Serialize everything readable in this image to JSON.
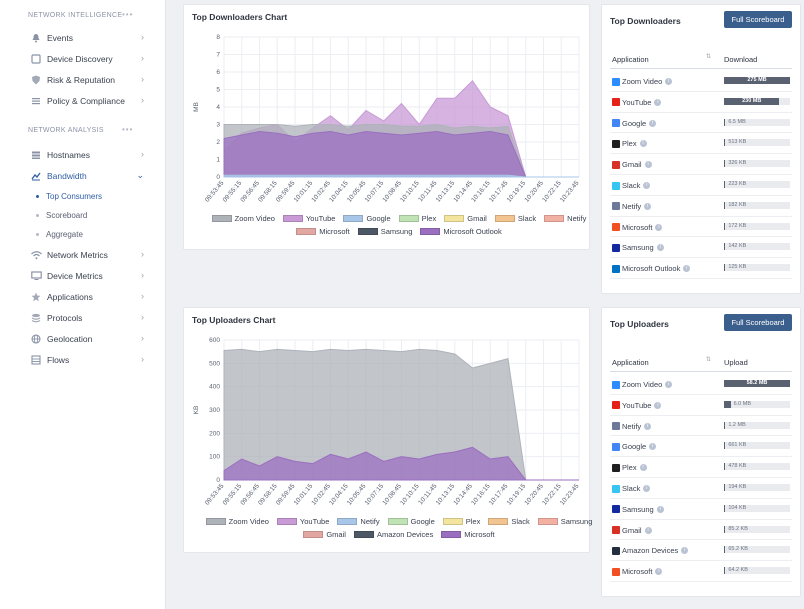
{
  "sidebar": {
    "sections": [
      {
        "title": "NETWORK INTELLIGENCE",
        "dots": "•••"
      },
      {
        "title": "NETWORK ANALYSIS",
        "dots": "•••"
      }
    ],
    "intel_items": [
      {
        "label": "Events",
        "icon": "bell-icon"
      },
      {
        "label": "Device Discovery",
        "icon": "device-icon"
      },
      {
        "label": "Risk & Reputation",
        "icon": "shield-icon"
      },
      {
        "label": "Policy & Compliance",
        "icon": "list-icon"
      }
    ],
    "analysis_items": [
      {
        "label": "Hostnames",
        "icon": "hostnames-icon"
      },
      {
        "label": "Bandwidth",
        "icon": "bandwidth-chart-icon"
      },
      {
        "label": "Network Metrics",
        "icon": "wifi-icon"
      },
      {
        "label": "Device Metrics",
        "icon": "monitor-icon"
      },
      {
        "label": "Applications",
        "icon": "star-icon"
      },
      {
        "label": "Protocols",
        "icon": "layers-icon"
      },
      {
        "label": "Geolocation",
        "icon": "globe-icon"
      },
      {
        "label": "Flows",
        "icon": "flows-icon"
      }
    ],
    "bandwidth_sub": [
      "Top Consumers",
      "Scoreboard",
      "Aggregate"
    ]
  },
  "downloaders_chart": {
    "title": "Top Downloaders Chart",
    "ylabel": "MB",
    "chart_data": {
      "type": "area",
      "x": [
        "09:53:45",
        "09:55:15",
        "09:56:45",
        "09:58:15",
        "09:59:45",
        "10:01:15",
        "10:02:45",
        "10:04:15",
        "10:05:45",
        "10:07:15",
        "10:08:45",
        "10:10:15",
        "10:11:45",
        "10:13:15",
        "10:14:45",
        "10:16:15",
        "10:17:45",
        "10:19:15",
        "10:20:45",
        "10:22:15",
        "10:23:45"
      ],
      "ylim": [
        0,
        8
      ],
      "yticks": [
        0,
        1,
        2,
        3,
        4,
        5,
        6,
        7,
        8
      ],
      "series": [
        {
          "name": "Zoom Video",
          "color": "#aeb3ba",
          "values": [
            3.0,
            3.0,
            3.0,
            3.0,
            2.9,
            3.0,
            3.0,
            2.9,
            3.0,
            3.0,
            2.9,
            2.9,
            3.0,
            2.8,
            2.9,
            2.8,
            2.9,
            0,
            0,
            0,
            0
          ]
        },
        {
          "name": "YouTube",
          "color": "#c89ad6",
          "values": [
            1.5,
            2.5,
            2.8,
            3.0,
            2.0,
            2.8,
            3.5,
            2.7,
            3.8,
            3.2,
            4.2,
            3.0,
            4.5,
            4.5,
            5.5,
            4.0,
            3.5,
            0,
            0,
            0,
            0
          ]
        },
        {
          "name": "Google",
          "color": "#a8c7e8",
          "values": [
            0.1,
            0.1,
            0.1,
            0.1,
            0.1,
            0.1,
            0.1,
            0.1,
            0.1,
            0.1,
            0.1,
            0.1,
            0.1,
            0.1,
            0.1,
            0.1,
            0.1,
            0,
            0,
            0,
            0
          ]
        },
        {
          "name": "Plex",
          "color": "#bfe3b4",
          "values": [
            0,
            0,
            0,
            0,
            0,
            0,
            0,
            0,
            0,
            0,
            0,
            0,
            0,
            0,
            0,
            0,
            0,
            0,
            0,
            0,
            0
          ]
        },
        {
          "name": "Gmail",
          "color": "#f3e59e",
          "values": [
            0,
            0,
            0,
            0,
            0,
            0,
            0,
            0,
            0,
            0,
            0,
            0,
            0,
            0,
            0,
            0,
            0,
            0,
            0,
            0,
            0
          ]
        },
        {
          "name": "Slack",
          "color": "#f2c48f",
          "values": [
            0,
            0,
            0,
            0,
            0,
            0,
            0,
            0,
            0,
            0,
            0,
            0,
            0,
            0,
            0,
            0,
            0,
            0,
            0,
            0,
            0
          ]
        },
        {
          "name": "Netify",
          "color": "#f2b1a3",
          "values": [
            0,
            0,
            0,
            0,
            0,
            0,
            0,
            0,
            0,
            0,
            0,
            0,
            0,
            0,
            0,
            0,
            0,
            0,
            0,
            0,
            0
          ]
        },
        {
          "name": "Microsoft",
          "color": "#e3a7a3",
          "values": [
            0,
            0,
            0,
            0,
            0,
            0,
            0,
            0,
            0,
            0,
            0,
            0,
            0,
            0,
            0,
            0,
            0,
            0,
            0,
            0,
            0
          ]
        },
        {
          "name": "Samsung",
          "color": "#4d5866",
          "values": [
            0,
            0,
            0,
            0,
            0,
            0,
            0,
            0,
            0,
            0,
            0,
            0,
            0,
            0,
            0,
            0,
            0,
            0,
            0,
            0,
            0
          ]
        },
        {
          "name": "Microsoft Outlook",
          "color": "#9b6fc0",
          "values": [
            2.2,
            2.4,
            2.6,
            2.5,
            2.3,
            2.5,
            2.6,
            2.4,
            2.6,
            2.5,
            2.4,
            2.5,
            2.6,
            2.4,
            2.5,
            2.6,
            2.4,
            0,
            0,
            0,
            0
          ]
        }
      ]
    }
  },
  "uploaders_chart": {
    "title": "Top Uploaders Chart",
    "ylabel": "KB",
    "chart_data": {
      "type": "area",
      "x": [
        "09:53:45",
        "09:55:15",
        "09:56:45",
        "09:58:15",
        "09:59:45",
        "10:01:15",
        "10:02:45",
        "10:04:15",
        "10:05:45",
        "10:07:15",
        "10:08:45",
        "10:10:15",
        "10:11:45",
        "10:13:15",
        "10:14:45",
        "10:16:15",
        "10:17:45",
        "10:19:15",
        "10:20:45",
        "10:22:15",
        "10:23:45"
      ],
      "ylim": [
        0,
        600
      ],
      "yticks": [
        0,
        100,
        200,
        300,
        400,
        500,
        600
      ],
      "series": [
        {
          "name": "Zoom Video",
          "color": "#aeb3ba",
          "values": [
            555,
            560,
            550,
            560,
            555,
            550,
            560,
            555,
            560,
            555,
            550,
            560,
            555,
            540,
            480,
            500,
            520,
            0,
            0,
            0,
            0
          ]
        },
        {
          "name": "YouTube",
          "color": "#c89ad6",
          "values": [
            0,
            0,
            0,
            0,
            0,
            0,
            0,
            0,
            0,
            0,
            0,
            0,
            0,
            0,
            0,
            0,
            0,
            0,
            0,
            0,
            0
          ]
        },
        {
          "name": "Netify",
          "color": "#a8c7e8",
          "values": [
            0,
            0,
            0,
            0,
            0,
            0,
            0,
            0,
            0,
            0,
            0,
            0,
            0,
            0,
            0,
            0,
            0,
            0,
            0,
            0,
            0
          ]
        },
        {
          "name": "Google",
          "color": "#bfe3b4",
          "values": [
            0,
            0,
            0,
            0,
            0,
            0,
            0,
            0,
            0,
            0,
            0,
            0,
            0,
            0,
            0,
            0,
            0,
            0,
            0,
            0,
            0
          ]
        },
        {
          "name": "Plex",
          "color": "#f3e59e",
          "values": [
            0,
            0,
            0,
            0,
            0,
            0,
            0,
            0,
            0,
            0,
            0,
            0,
            0,
            0,
            0,
            0,
            0,
            0,
            0,
            0,
            0
          ]
        },
        {
          "name": "Slack",
          "color": "#f2c48f",
          "values": [
            0,
            0,
            0,
            0,
            0,
            0,
            0,
            0,
            0,
            0,
            0,
            0,
            0,
            0,
            0,
            0,
            0,
            0,
            0,
            0,
            0
          ]
        },
        {
          "name": "Samsung",
          "color": "#f2b1a3",
          "values": [
            0,
            0,
            0,
            0,
            0,
            0,
            0,
            0,
            0,
            0,
            0,
            0,
            0,
            0,
            0,
            0,
            0,
            0,
            0,
            0,
            0
          ]
        },
        {
          "name": "Gmail",
          "color": "#e3a7a3",
          "values": [
            0,
            0,
            0,
            0,
            0,
            0,
            0,
            0,
            0,
            0,
            0,
            0,
            0,
            0,
            0,
            0,
            0,
            0,
            0,
            0,
            0
          ]
        },
        {
          "name": "Amazon Devices",
          "color": "#4d5866",
          "values": [
            0,
            0,
            0,
            0,
            0,
            0,
            0,
            0,
            0,
            0,
            0,
            0,
            0,
            0,
            0,
            0,
            0,
            0,
            0,
            0,
            0
          ]
        },
        {
          "name": "Microsoft",
          "color": "#9b6fc0",
          "values": [
            40,
            90,
            60,
            100,
            80,
            70,
            110,
            90,
            120,
            80,
            100,
            90,
            110,
            120,
            140,
            90,
            100,
            0,
            0,
            0,
            0
          ]
        }
      ]
    }
  },
  "top_downloaders": {
    "title": "Top Downloaders",
    "button": "Full Scoreboard",
    "col_app": "Application",
    "col_value": "Download",
    "rows": [
      {
        "app": "Zoom Video",
        "value": "275 MB",
        "pct": 100,
        "icon_color": "#2d8cff"
      },
      {
        "app": "YouTube",
        "value": "230 MB",
        "pct": 84,
        "icon_color": "#e62117"
      },
      {
        "app": "Google",
        "value": "6.5 MB",
        "pct": 2,
        "icon_color": "#4285f4"
      },
      {
        "app": "Plex",
        "value": "513 KB",
        "pct": 0,
        "icon_color": "#1f1f1f"
      },
      {
        "app": "Gmail",
        "value": "326 KB",
        "pct": 0,
        "icon_color": "#d93025"
      },
      {
        "app": "Slack",
        "value": "223 KB",
        "pct": 0,
        "icon_color": "#36c5f0"
      },
      {
        "app": "Netify",
        "value": "182 KB",
        "pct": 0,
        "icon_color": "#6b7a99"
      },
      {
        "app": "Microsoft",
        "value": "172 KB",
        "pct": 0,
        "icon_color": "#f25022"
      },
      {
        "app": "Samsung",
        "value": "142 KB",
        "pct": 0,
        "icon_color": "#1428a0"
      },
      {
        "app": "Microsoft Outlook",
        "value": "125 KB",
        "pct": 0,
        "icon_color": "#0072c6"
      }
    ]
  },
  "top_uploaders": {
    "title": "Top Uploaders",
    "button": "Full Scoreboard",
    "col_app": "Application",
    "col_value": "Upload",
    "rows": [
      {
        "app": "Zoom Video",
        "value": "58.2 MB",
        "pct": 100,
        "icon_color": "#2d8cff"
      },
      {
        "app": "YouTube",
        "value": "6.0 MB",
        "pct": 10,
        "icon_color": "#e62117"
      },
      {
        "app": "Netify",
        "value": "1.2 MB",
        "pct": 2,
        "icon_color": "#6b7a99"
      },
      {
        "app": "Google",
        "value": "661 KB",
        "pct": 1,
        "icon_color": "#4285f4"
      },
      {
        "app": "Plex",
        "value": "478 KB",
        "pct": 1,
        "icon_color": "#1f1f1f"
      },
      {
        "app": "Slack",
        "value": "194 KB",
        "pct": 0,
        "icon_color": "#36c5f0"
      },
      {
        "app": "Samsung",
        "value": "104 KB",
        "pct": 0,
        "icon_color": "#1428a0"
      },
      {
        "app": "Gmail",
        "value": "85.2 KB",
        "pct": 0,
        "icon_color": "#d93025"
      },
      {
        "app": "Amazon Devices",
        "value": "65.2 KB",
        "pct": 0,
        "icon_color": "#232f3e"
      },
      {
        "app": "Microsoft",
        "value": "64.2 KB",
        "pct": 0,
        "icon_color": "#f25022"
      }
    ]
  }
}
